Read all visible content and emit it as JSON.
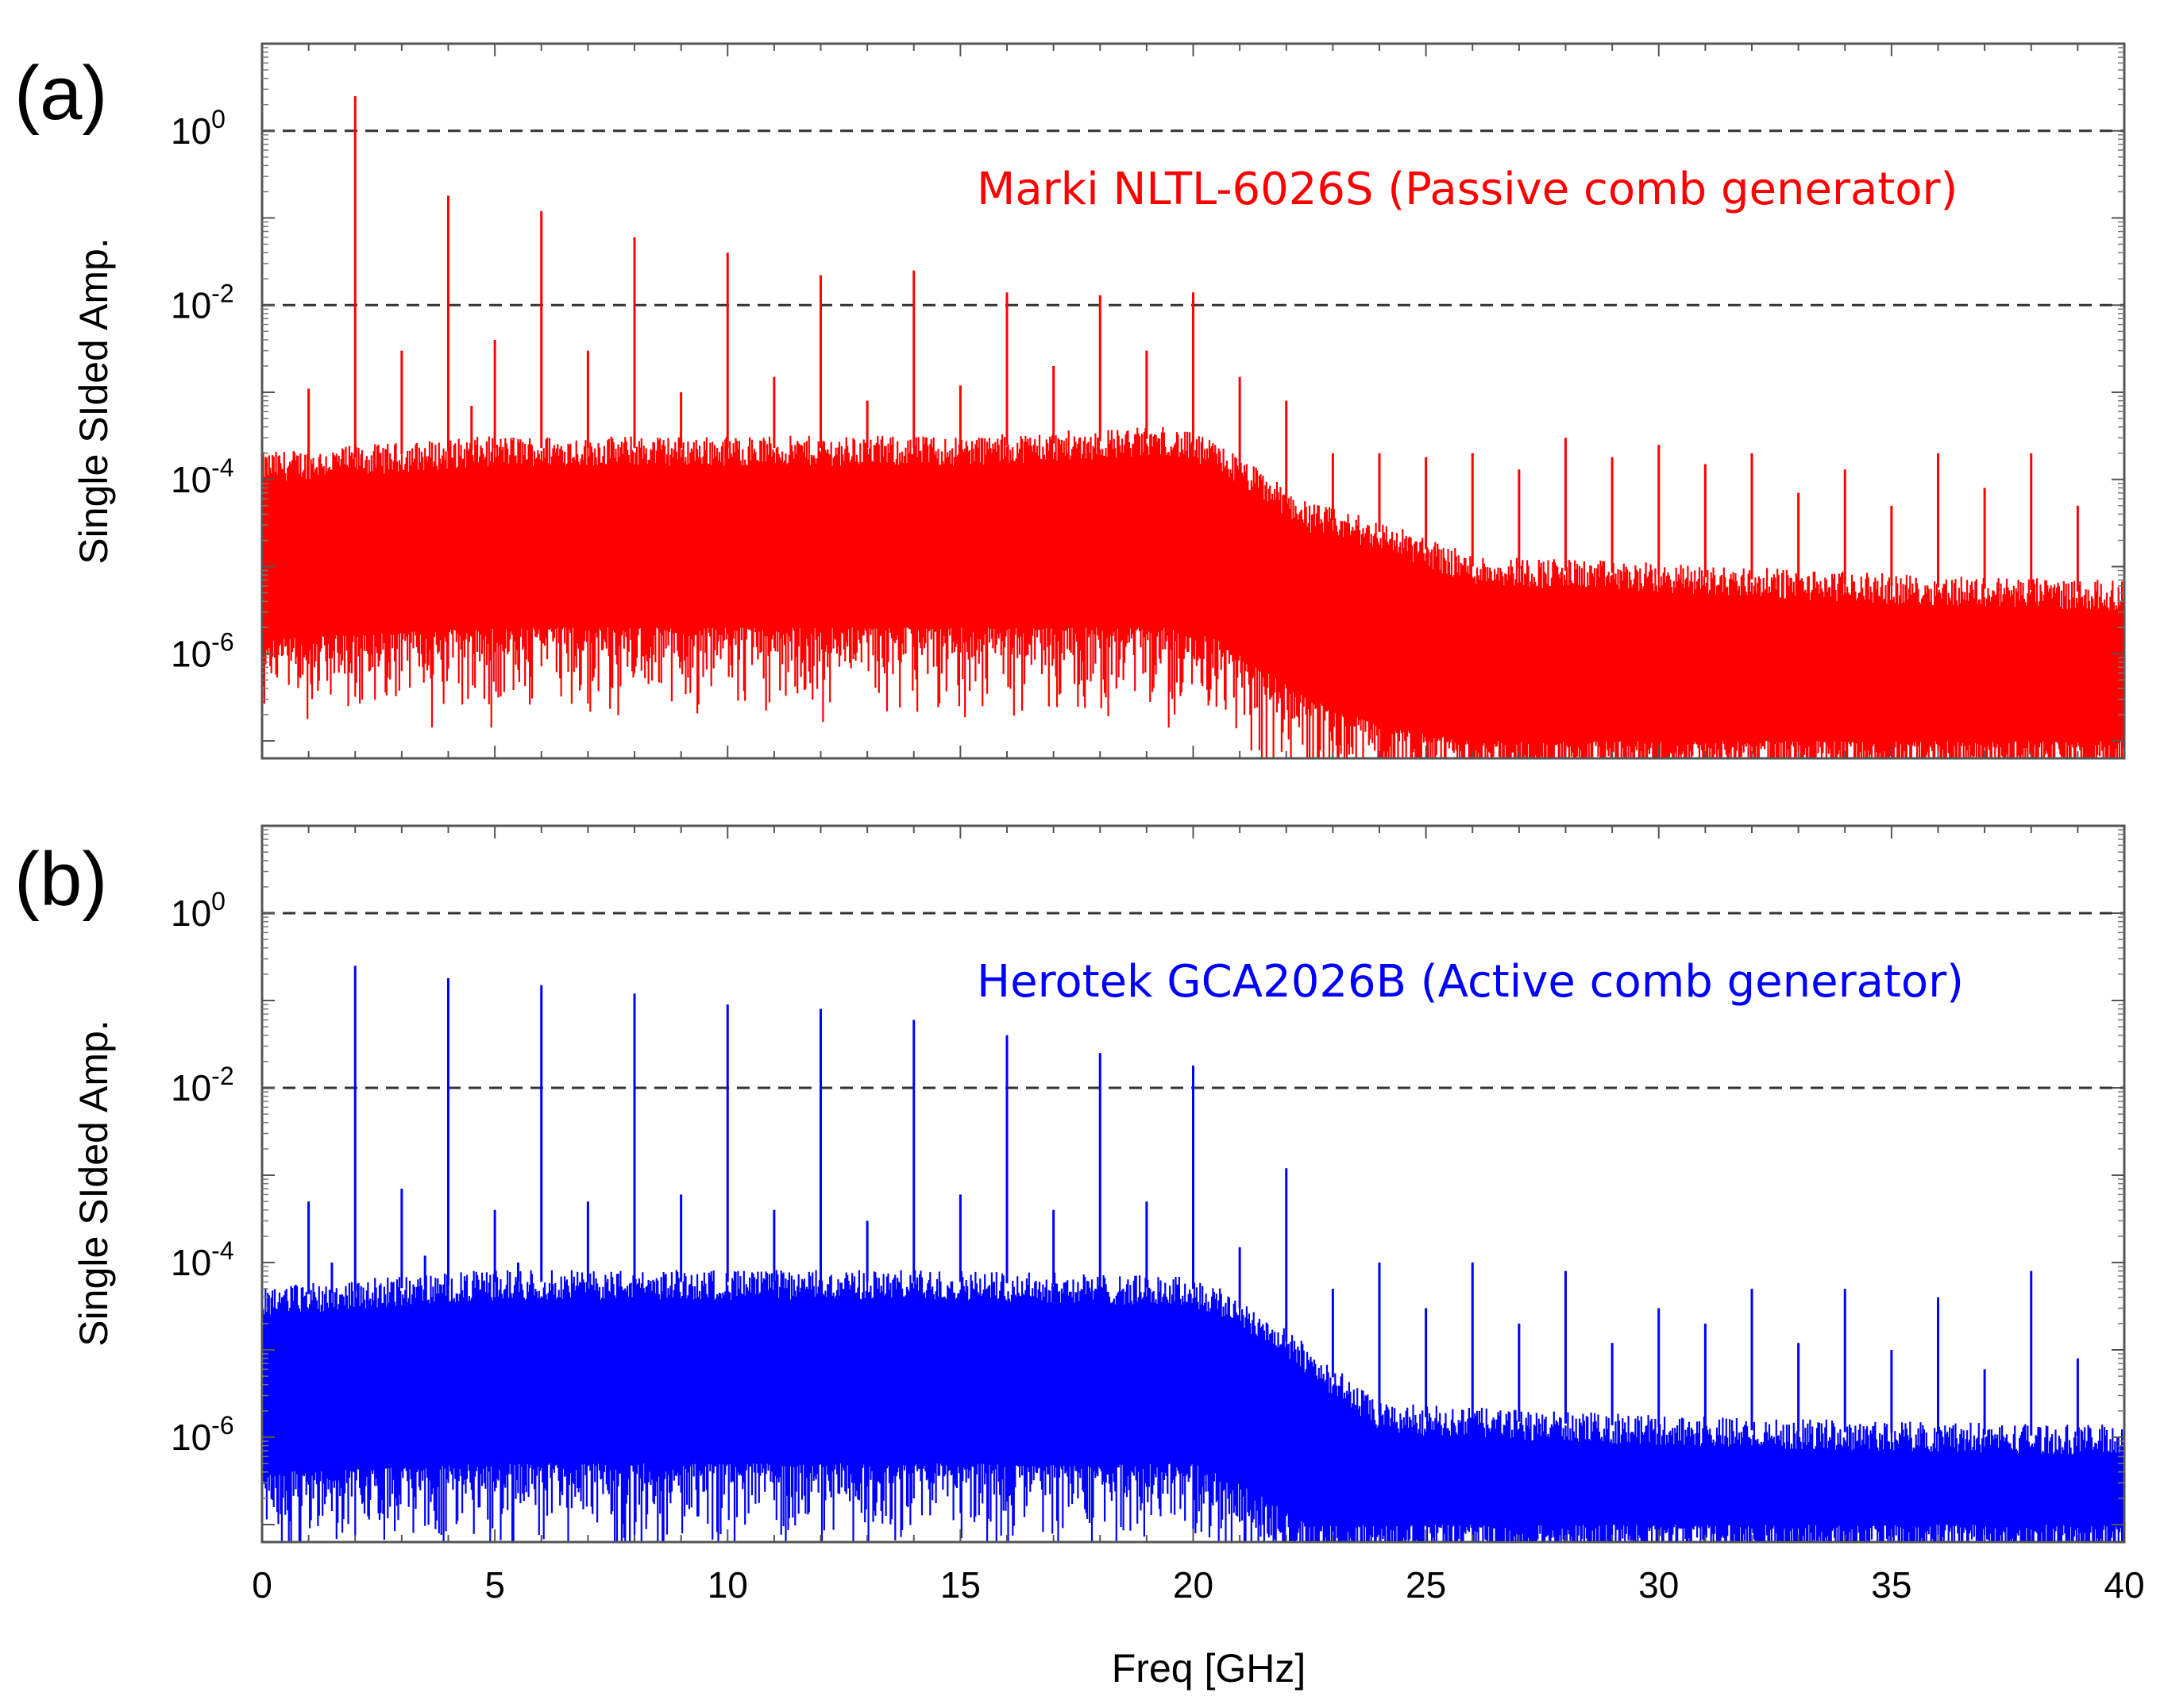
{
  "chart_data": [
    {
      "type": "line",
      "panel_label": "(a)",
      "annotation": "Marki NLTL-6026S (Passive comb generator)",
      "color": "#ff0000",
      "xlabel": "",
      "ylabel": "Single SIded Amp.",
      "xlim": [
        0,
        40
      ],
      "ylog_exp_range": [
        -7.2,
        1
      ],
      "ytick_labels": [
        {
          "base": "10",
          "exp": "0",
          "exp_value": 0
        },
        {
          "base": "10",
          "exp": "-2",
          "exp_value": -2
        },
        {
          "base": "10",
          "exp": "-4",
          "exp_value": -4
        },
        {
          "base": "10",
          "exp": "-6",
          "exp_value": -6
        }
      ],
      "dashed_gridlines_exp": [
        0,
        -2
      ],
      "noise_floor": [
        {
          "x": 0,
          "top": 0.00015,
          "bottom": 1.5e-06
        },
        {
          "x": 5,
          "top": 0.00023,
          "bottom": 2e-06
        },
        {
          "x": 10,
          "top": 0.00023,
          "bottom": 2e-06
        },
        {
          "x": 15,
          "top": 0.00023,
          "bottom": 2e-06
        },
        {
          "x": 19.5,
          "top": 0.0003,
          "bottom": 2e-06
        },
        {
          "x": 20.5,
          "top": 0.0002,
          "bottom": 1.5e-06
        },
        {
          "x": 22.5,
          "top": 4e-05,
          "bottom": 3e-07
        },
        {
          "x": 24,
          "top": 2.5e-05,
          "bottom": 1.5e-07
        },
        {
          "x": 26,
          "top": 1e-05,
          "bottom": 1e-07
        },
        {
          "x": 30,
          "top": 8e-06,
          "bottom": 1e-07
        },
        {
          "x": 35,
          "top": 6e-06,
          "bottom": 1e-07
        },
        {
          "x": 40,
          "top": 5e-06,
          "bottom": 1e-07
        }
      ],
      "spikes": [
        {
          "x": 1,
          "y": 0.0011
        },
        {
          "x": 2,
          "y": 2.5
        },
        {
          "x": 3,
          "y": 0.003
        },
        {
          "x": 4,
          "y": 0.18
        },
        {
          "x": 4.5,
          "y": 0.0007
        },
        {
          "x": 5,
          "y": 0.004
        },
        {
          "x": 6,
          "y": 0.12
        },
        {
          "x": 7,
          "y": 0.003
        },
        {
          "x": 8,
          "y": 0.06
        },
        {
          "x": 9,
          "y": 0.001
        },
        {
          "x": 10,
          "y": 0.04
        },
        {
          "x": 11,
          "y": 0.0015
        },
        {
          "x": 12,
          "y": 0.022
        },
        {
          "x": 13,
          "y": 0.0008
        },
        {
          "x": 14,
          "y": 0.025
        },
        {
          "x": 15,
          "y": 0.0012
        },
        {
          "x": 16,
          "y": 0.014
        },
        {
          "x": 17,
          "y": 0.002
        },
        {
          "x": 18,
          "y": 0.013
        },
        {
          "x": 19,
          "y": 0.003
        },
        {
          "x": 20,
          "y": 0.014
        },
        {
          "x": 21,
          "y": 0.0015
        },
        {
          "x": 22,
          "y": 0.0008
        },
        {
          "x": 23,
          "y": 0.0002
        },
        {
          "x": 24,
          "y": 0.0002
        },
        {
          "x": 25,
          "y": 0.00018
        },
        {
          "x": 26,
          "y": 0.0002
        },
        {
          "x": 27,
          "y": 0.00013
        },
        {
          "x": 28,
          "y": 0.0003
        },
        {
          "x": 29,
          "y": 0.00018
        },
        {
          "x": 30,
          "y": 0.00025
        },
        {
          "x": 31,
          "y": 0.00015
        },
        {
          "x": 32,
          "y": 0.0002
        },
        {
          "x": 33,
          "y": 7e-05
        },
        {
          "x": 34,
          "y": 0.00013
        },
        {
          "x": 35,
          "y": 5e-05
        },
        {
          "x": 36,
          "y": 0.0002
        },
        {
          "x": 37,
          "y": 8e-05
        },
        {
          "x": 38,
          "y": 0.0002
        },
        {
          "x": 39,
          "y": 5e-05
        }
      ]
    },
    {
      "type": "line",
      "panel_label": "(b)",
      "annotation": "Herotek GCA2026B (Active comb generator)",
      "color": "#0000ff",
      "xlabel": "Freq [GHz]",
      "ylabel": "Single SIded Amp.",
      "xlim": [
        0,
        40
      ],
      "ylog_exp_range": [
        -7.2,
        1
      ],
      "xtick_labels": [
        "0",
        "5",
        "10",
        "15",
        "20",
        "25",
        "30",
        "35",
        "40"
      ],
      "ytick_labels": [
        {
          "base": "10",
          "exp": "0",
          "exp_value": 0
        },
        {
          "base": "10",
          "exp": "-2",
          "exp_value": -2
        },
        {
          "base": "10",
          "exp": "-4",
          "exp_value": -4
        },
        {
          "base": "10",
          "exp": "-6",
          "exp_value": -6
        }
      ],
      "dashed_gridlines_exp": [
        0,
        -2
      ],
      "noise_floor": [
        {
          "x": 0,
          "top": 4e-05,
          "bottom": 4e-07
        },
        {
          "x": 5,
          "top": 6e-05,
          "bottom": 5e-07
        },
        {
          "x": 10,
          "top": 6e-05,
          "bottom": 5e-07
        },
        {
          "x": 15,
          "top": 6e-05,
          "bottom": 5e-07
        },
        {
          "x": 20,
          "top": 5e-05,
          "bottom": 5e-07
        },
        {
          "x": 21,
          "top": 3e-05,
          "bottom": 3e-07
        },
        {
          "x": 22.5,
          "top": 8e-06,
          "bottom": 1e-07
        },
        {
          "x": 24,
          "top": 1.8e-06,
          "bottom": 1e-07
        },
        {
          "x": 27,
          "top": 1.5e-06,
          "bottom": 1e-07
        },
        {
          "x": 32,
          "top": 1.2e-06,
          "bottom": 1e-07
        },
        {
          "x": 40,
          "top": 1e-06,
          "bottom": 1e-07
        }
      ],
      "spikes": [
        {
          "x": 1,
          "y": 0.0005
        },
        {
          "x": 1.5,
          "y": 0.0001
        },
        {
          "x": 2,
          "y": 0.25
        },
        {
          "x": 3,
          "y": 0.0007
        },
        {
          "x": 3.5,
          "y": 0.00012
        },
        {
          "x": 4,
          "y": 0.18
        },
        {
          "x": 5,
          "y": 0.0004
        },
        {
          "x": 5.5,
          "y": 0.0001
        },
        {
          "x": 6,
          "y": 0.15
        },
        {
          "x": 7,
          "y": 0.0005
        },
        {
          "x": 8,
          "y": 0.12
        },
        {
          "x": 9,
          "y": 0.0006
        },
        {
          "x": 10,
          "y": 0.09
        },
        {
          "x": 11,
          "y": 0.0004
        },
        {
          "x": 12,
          "y": 0.08
        },
        {
          "x": 13,
          "y": 0.0003
        },
        {
          "x": 14,
          "y": 0.06
        },
        {
          "x": 15,
          "y": 0.0006
        },
        {
          "x": 16,
          "y": 0.04
        },
        {
          "x": 17,
          "y": 0.0004
        },
        {
          "x": 18,
          "y": 0.025
        },
        {
          "x": 19,
          "y": 0.0005
        },
        {
          "x": 20,
          "y": 0.018
        },
        {
          "x": 21,
          "y": 0.00015
        },
        {
          "x": 22,
          "y": 0.0012
        },
        {
          "x": 23,
          "y": 5e-05
        },
        {
          "x": 24,
          "y": 0.0001
        },
        {
          "x": 25,
          "y": 3e-05
        },
        {
          "x": 26,
          "y": 0.0001
        },
        {
          "x": 27,
          "y": 2e-05
        },
        {
          "x": 28,
          "y": 8e-05
        },
        {
          "x": 29,
          "y": 1.2e-05
        },
        {
          "x": 30,
          "y": 3e-05
        },
        {
          "x": 31,
          "y": 2e-05
        },
        {
          "x": 32,
          "y": 5e-05
        },
        {
          "x": 33,
          "y": 1.2e-05
        },
        {
          "x": 34,
          "y": 5e-05
        },
        {
          "x": 35,
          "y": 1e-05
        },
        {
          "x": 36,
          "y": 4e-05
        },
        {
          "x": 37,
          "y": 6e-06
        },
        {
          "x": 38,
          "y": 8e-05
        },
        {
          "x": 39,
          "y": 8e-06
        }
      ]
    }
  ]
}
